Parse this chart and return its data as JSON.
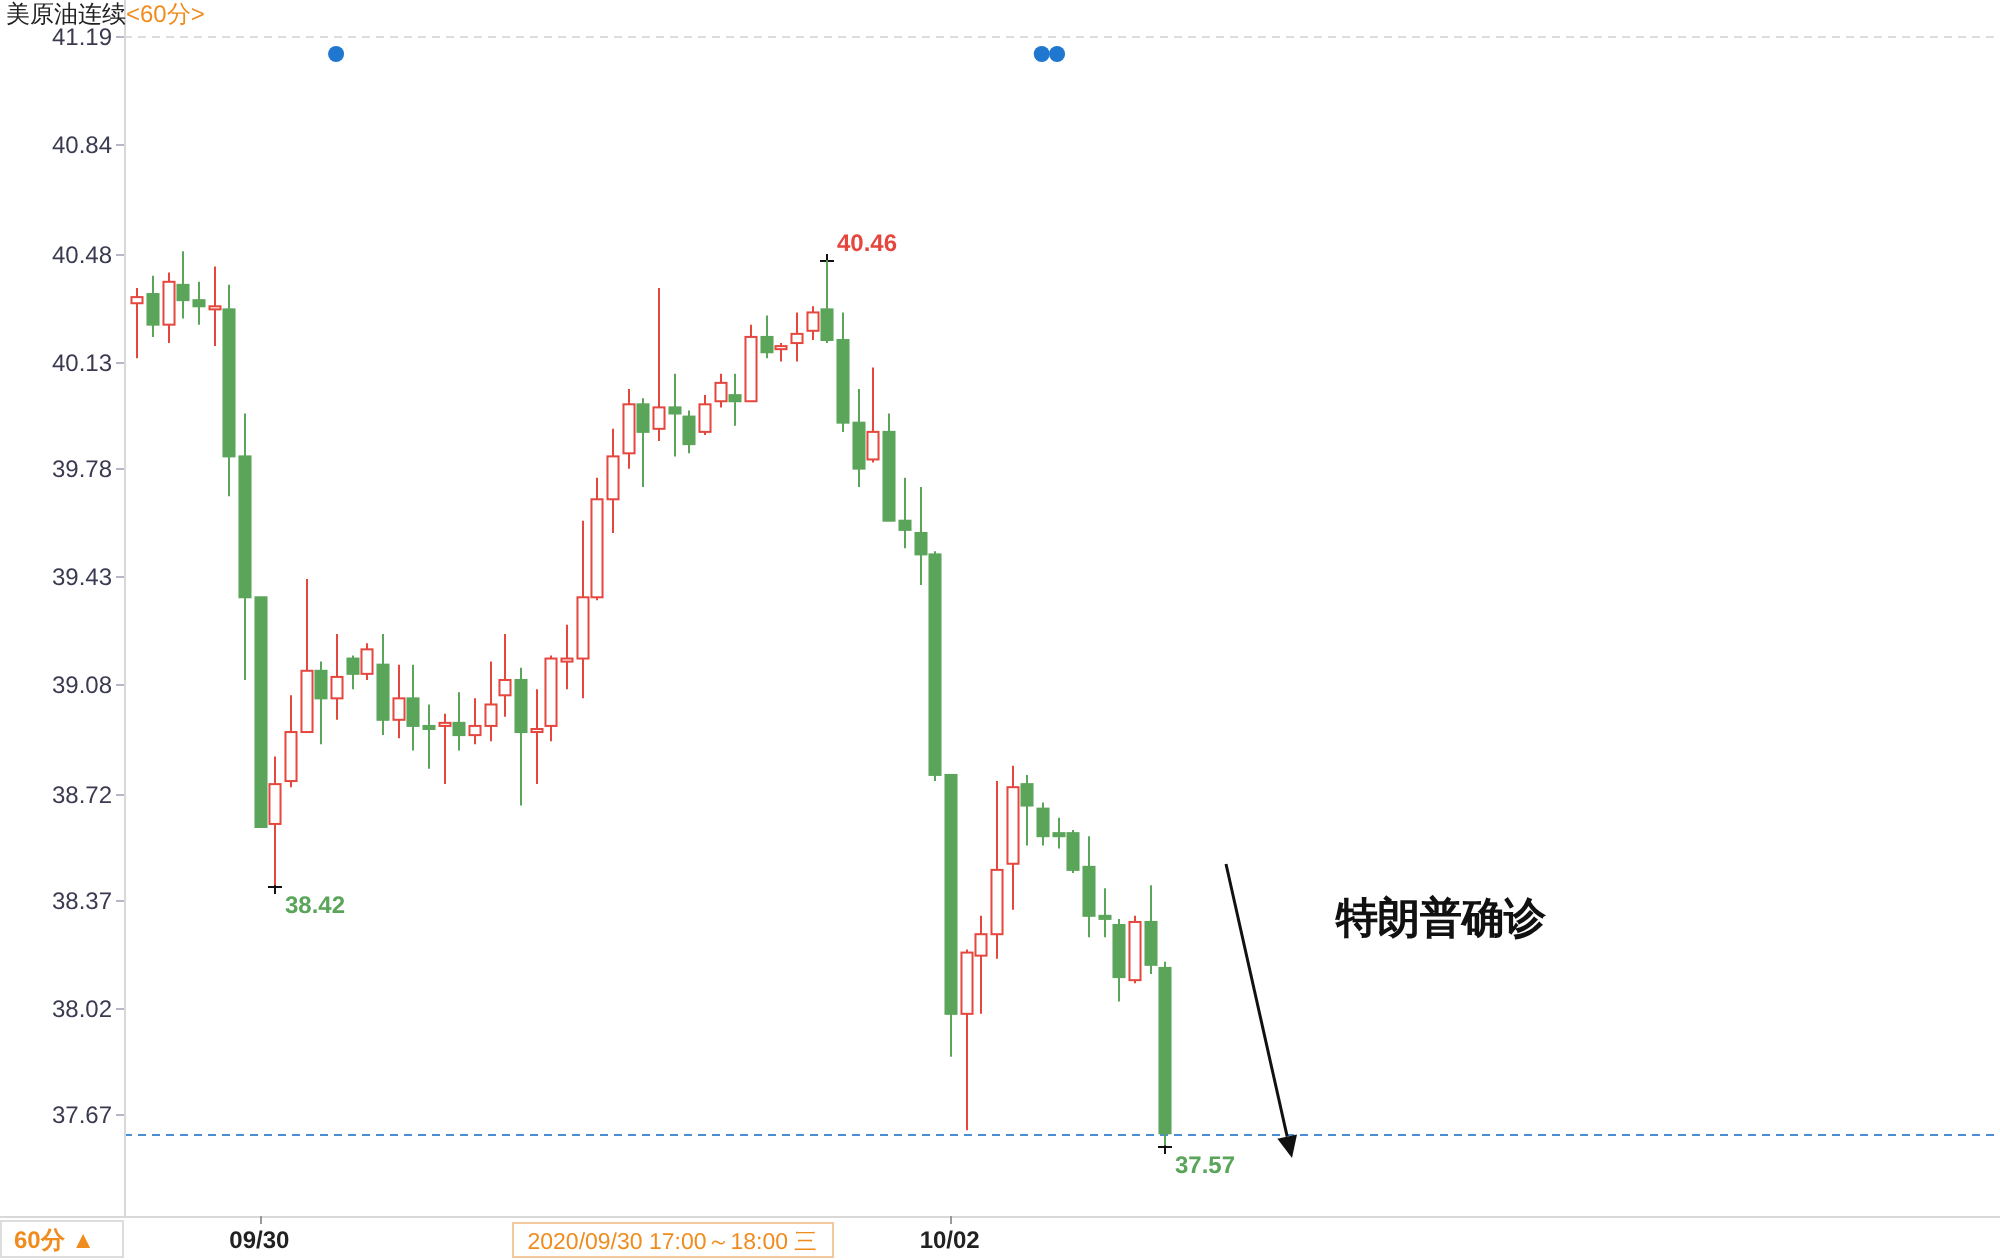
{
  "chart_data": {
    "type": "candlestick",
    "title": "美原油连续",
    "subtitle": "<60分>",
    "categories": [
      null,
      null,
      null,
      null,
      null,
      null,
      null,
      null,
      "09/30",
      null,
      null,
      null,
      null,
      null,
      null,
      null,
      null,
      null,
      null,
      null,
      null,
      null,
      null,
      null,
      null,
      null,
      null,
      null,
      null,
      null,
      null,
      null,
      null,
      null,
      null,
      null,
      null,
      null,
      null,
      null,
      null,
      null,
      null,
      null,
      null,
      null,
      null,
      null,
      null,
      null,
      null,
      null,
      null,
      "10/02",
      null,
      null,
      null,
      null,
      null,
      null,
      null,
      null,
      null,
      null,
      null,
      null,
      null,
      null
    ],
    "ohlc": [
      [
        40.32,
        40.37,
        40.14,
        40.34
      ],
      [
        40.35,
        40.41,
        40.21,
        40.25
      ],
      [
        40.25,
        40.42,
        40.19,
        40.39
      ],
      [
        40.38,
        40.49,
        40.27,
        40.33
      ],
      [
        40.33,
        40.39,
        40.25,
        40.31
      ],
      [
        40.3,
        40.44,
        40.18,
        40.31
      ],
      [
        40.3,
        40.38,
        39.69,
        39.82
      ],
      [
        39.82,
        39.96,
        39.09,
        39.36
      ],
      [
        39.36,
        39.36,
        38.61,
        38.61
      ],
      [
        38.62,
        38.84,
        38.42,
        38.75
      ],
      [
        38.76,
        39.04,
        38.74,
        38.92
      ],
      [
        38.92,
        39.42,
        38.92,
        39.12
      ],
      [
        39.12,
        39.15,
        38.88,
        39.03
      ],
      [
        39.03,
        39.24,
        38.96,
        39.1
      ],
      [
        39.16,
        39.17,
        39.06,
        39.11
      ],
      [
        39.11,
        39.21,
        39.09,
        39.19
      ],
      [
        39.14,
        39.24,
        38.91,
        38.96
      ],
      [
        38.96,
        39.14,
        38.9,
        39.03
      ],
      [
        39.03,
        39.14,
        38.86,
        38.94
      ],
      [
        38.94,
        39.01,
        38.8,
        38.93
      ],
      [
        38.94,
        38.98,
        38.75,
        38.95
      ],
      [
        38.95,
        39.05,
        38.86,
        38.91
      ],
      [
        38.91,
        39.03,
        38.88,
        38.94
      ],
      [
        38.94,
        39.15,
        38.89,
        39.01
      ],
      [
        39.04,
        39.24,
        38.97,
        39.09
      ],
      [
        39.09,
        39.13,
        38.68,
        38.92
      ],
      [
        38.92,
        39.06,
        38.75,
        38.93
      ],
      [
        38.94,
        39.17,
        38.89,
        39.16
      ],
      [
        39.15,
        39.27,
        39.06,
        39.16
      ],
      [
        39.16,
        39.61,
        39.03,
        39.36
      ],
      [
        39.36,
        39.75,
        39.35,
        39.68
      ],
      [
        39.68,
        39.91,
        39.57,
        39.82
      ],
      [
        39.83,
        40.04,
        39.78,
        39.99
      ],
      [
        39.99,
        40.01,
        39.72,
        39.9
      ],
      [
        39.91,
        40.37,
        39.87,
        39.98
      ],
      [
        39.98,
        40.09,
        39.82,
        39.96
      ],
      [
        39.95,
        39.97,
        39.83,
        39.86
      ],
      [
        39.9,
        40.02,
        39.89,
        39.99
      ],
      [
        40.0,
        40.09,
        39.98,
        40.06
      ],
      [
        40.02,
        40.09,
        39.92,
        40.0
      ],
      [
        40.0,
        40.25,
        40.0,
        40.21
      ],
      [
        40.21,
        40.28,
        40.14,
        40.16
      ],
      [
        40.17,
        40.19,
        40.13,
        40.18
      ],
      [
        40.19,
        40.29,
        40.13,
        40.22
      ],
      [
        40.23,
        40.31,
        40.2,
        40.29
      ],
      [
        40.3,
        40.46,
        40.19,
        40.2
      ],
      [
        40.2,
        40.29,
        39.9,
        39.93
      ],
      [
        39.93,
        40.04,
        39.72,
        39.78
      ],
      [
        39.81,
        40.11,
        39.8,
        39.9
      ],
      [
        39.9,
        39.96,
        39.61,
        39.61
      ],
      [
        39.61,
        39.75,
        39.52,
        39.58
      ],
      [
        39.57,
        39.72,
        39.4,
        39.5
      ],
      [
        39.5,
        39.51,
        38.76,
        38.78
      ],
      [
        38.78,
        38.78,
        37.86,
        38.0
      ],
      [
        38.0,
        38.21,
        37.62,
        38.2
      ],
      [
        38.19,
        38.32,
        38.0,
        38.26
      ],
      [
        38.26,
        38.76,
        38.18,
        38.47
      ],
      [
        38.49,
        38.81,
        38.34,
        38.74
      ],
      [
        38.75,
        38.78,
        38.55,
        38.68
      ],
      [
        38.67,
        38.69,
        38.55,
        38.58
      ],
      [
        38.59,
        38.64,
        38.54,
        38.58
      ],
      [
        38.59,
        38.6,
        38.46,
        38.47
      ],
      [
        38.48,
        38.58,
        38.25,
        38.32
      ],
      [
        38.32,
        38.41,
        38.25,
        38.31
      ],
      [
        38.29,
        38.31,
        38.04,
        38.12
      ],
      [
        38.11,
        38.32,
        38.1,
        38.3
      ],
      [
        38.3,
        38.42,
        38.13,
        38.16
      ],
      [
        38.15,
        38.17,
        37.57,
        37.61
      ]
    ],
    "colors": [
      "#e5463d",
      "#5aa55a",
      "#e5463d",
      "#5aa55a",
      "#5aa55a",
      "#e5463d",
      "#5aa55a",
      "#5aa55a",
      "#5aa55a",
      "#e5463d",
      "#e5463d",
      "#e5463d",
      "#5aa55a",
      "#e5463d",
      "#5aa55a",
      "#e5463d",
      "#5aa55a",
      "#e5463d",
      "#5aa55a",
      "#5aa55a",
      "#e5463d",
      "#5aa55a",
      "#e5463d",
      "#e5463d",
      "#e5463d",
      "#5aa55a",
      "#e5463d",
      "#e5463d",
      "#e5463d",
      "#e5463d",
      "#e5463d",
      "#e5463d",
      "#e5463d",
      "#5aa55a",
      "#e5463d",
      "#5aa55a",
      "#5aa55a",
      "#e5463d",
      "#e5463d",
      "#5aa55a",
      "#e5463d",
      "#5aa55a",
      "#e5463d",
      "#e5463d",
      "#e5463d",
      "#5aa55a",
      "#5aa55a",
      "#5aa55a",
      "#e5463d",
      "#5aa55a",
      "#5aa55a",
      "#5aa55a",
      "#5aa55a",
      "#5aa55a",
      "#e5463d",
      "#e5463d",
      "#e5463d",
      "#e5463d",
      "#5aa55a",
      "#5aa55a",
      "#5aa55a",
      "#5aa55a",
      "#5aa55a",
      "#5aa55a",
      "#5aa55a",
      "#e5463d",
      "#5aa55a",
      "#5aa55a"
    ],
    "value_labels": [
      null,
      null,
      null,
      null,
      null,
      null,
      null,
      null,
      null,
      "38.42",
      null,
      null,
      null,
      null,
      null,
      null,
      null,
      null,
      null,
      null,
      null,
      null,
      null,
      null,
      null,
      null,
      null,
      null,
      null,
      null,
      null,
      null,
      null,
      null,
      null,
      null,
      null,
      null,
      null,
      null,
      null,
      null,
      null,
      null,
      null,
      "40.46",
      null,
      null,
      null,
      null,
      null,
      null,
      null,
      null,
      null,
      null,
      null,
      null,
      null,
      null,
      null,
      null,
      null,
      null,
      null,
      null,
      null,
      "37.57"
    ],
    "ylim": [
      37.34,
      41.31
    ],
    "yticks": [
      37.67,
      38.02,
      38.37,
      38.72,
      39.08,
      39.43,
      39.78,
      40.13,
      40.48,
      40.84,
      41.19
    ],
    "ref_lines": [
      {
        "axis": "y",
        "value": 41.19,
        "color": "#dcdcdc",
        "line_style": "dashed"
      },
      {
        "axis": "y",
        "value": 37.61,
        "color": "#4a8fd6",
        "line_style": "dashed"
      }
    ],
    "annotations": [
      "特朗普确诊",
      "2020/09/30 17:00～18:00 三",
      "60分 ▲"
    ]
  }
}
